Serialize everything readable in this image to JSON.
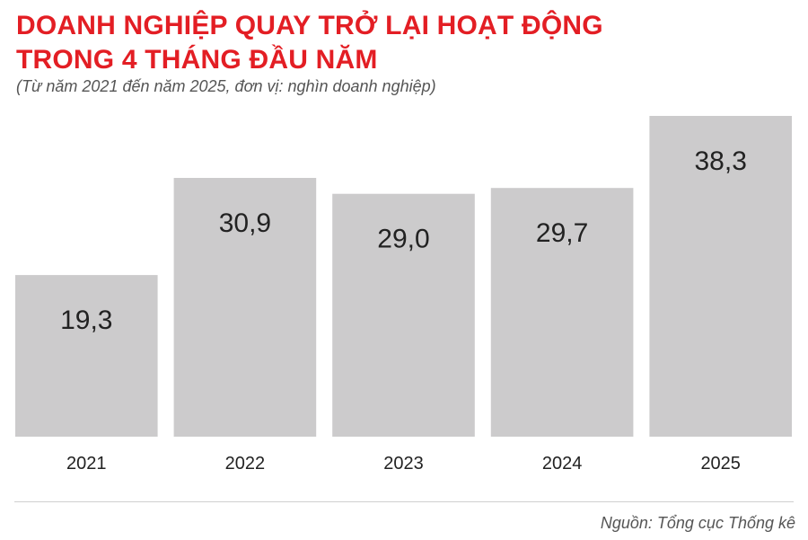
{
  "header": {
    "title_line1": "DOANH NGHIỆP QUAY TRỞ LẠI HOẠT ĐỘNG",
    "title_line2": "TRONG 4 THÁNG ĐẦU NĂM",
    "subtitle": "(Từ năm 2021 đến năm 2025, đơn vị: nghìn doanh nghiệp)"
  },
  "chart_data": {
    "type": "bar",
    "title": "DOANH NGHIỆP QUAY TRỞ LẠI HOẠT ĐỘNG TRONG 4 THÁNG ĐẦU NĂM",
    "subtitle": "(Từ năm 2021 đến năm 2025, đơn vị: nghìn doanh nghiệp)",
    "categories": [
      "2021",
      "2022",
      "2023",
      "2024",
      "2025"
    ],
    "values": [
      19.3,
      30.9,
      29.0,
      29.7,
      38.3
    ],
    "value_labels": [
      "19,3",
      "30,9",
      "29,0",
      "29,7",
      "38,3"
    ],
    "xlabel": "",
    "ylabel": "",
    "ylim": [
      0,
      38.3
    ],
    "grid": false,
    "legend": "none",
    "bar_color": "#cccbcc",
    "label_color": "#222222"
  },
  "footer": {
    "source": "Nguồn: Tổng cục Thống kê"
  }
}
